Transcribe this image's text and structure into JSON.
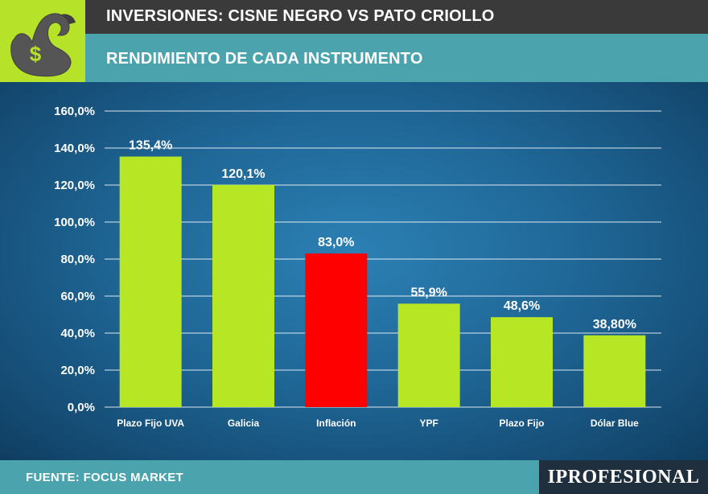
{
  "header": {
    "title": "INVERSIONES: CISNE NEGRO VS PATO CRIOLLO",
    "subtitle": "RENDIMIENTO DE CADA INSTRUMENTO"
  },
  "logo": {
    "icon": "swan-dollar-icon",
    "symbol": "$"
  },
  "footer": {
    "source": "FUENTE: FOCUS MARKET",
    "brand": "IPROFESIONAL"
  },
  "colors": {
    "bar_default": "#b7e625",
    "bar_highlight": "#ff0000",
    "accent_lime": "#b7e22a",
    "header_dark": "#3a3a3a",
    "header_teal": "#4aa3ad"
  },
  "chart_data": {
    "type": "bar",
    "title": "RENDIMIENTO DE CADA INSTRUMENTO",
    "xlabel": "",
    "ylabel": "",
    "ylim": [
      0,
      160
    ],
    "yticks": [
      0,
      20,
      40,
      60,
      80,
      100,
      120,
      140,
      160
    ],
    "ytick_labels": [
      "0,0%",
      "20,0%",
      "40,0%",
      "60,0%",
      "80,0%",
      "100,0%",
      "120,0%",
      "140,0%",
      "160,0%"
    ],
    "grid": true,
    "categories": [
      "Plazo Fijo UVA",
      "Galicia",
      "Inflación",
      "YPF",
      "Plazo Fijo",
      "Dólar Blue"
    ],
    "values": [
      135.4,
      120.1,
      83.0,
      55.9,
      48.6,
      38.8
    ],
    "value_labels": [
      "135,4%",
      "120,1%",
      "83,0%",
      "55,9%",
      "48,6%",
      "38,80%"
    ],
    "highlight": [
      "Inflación"
    ]
  }
}
